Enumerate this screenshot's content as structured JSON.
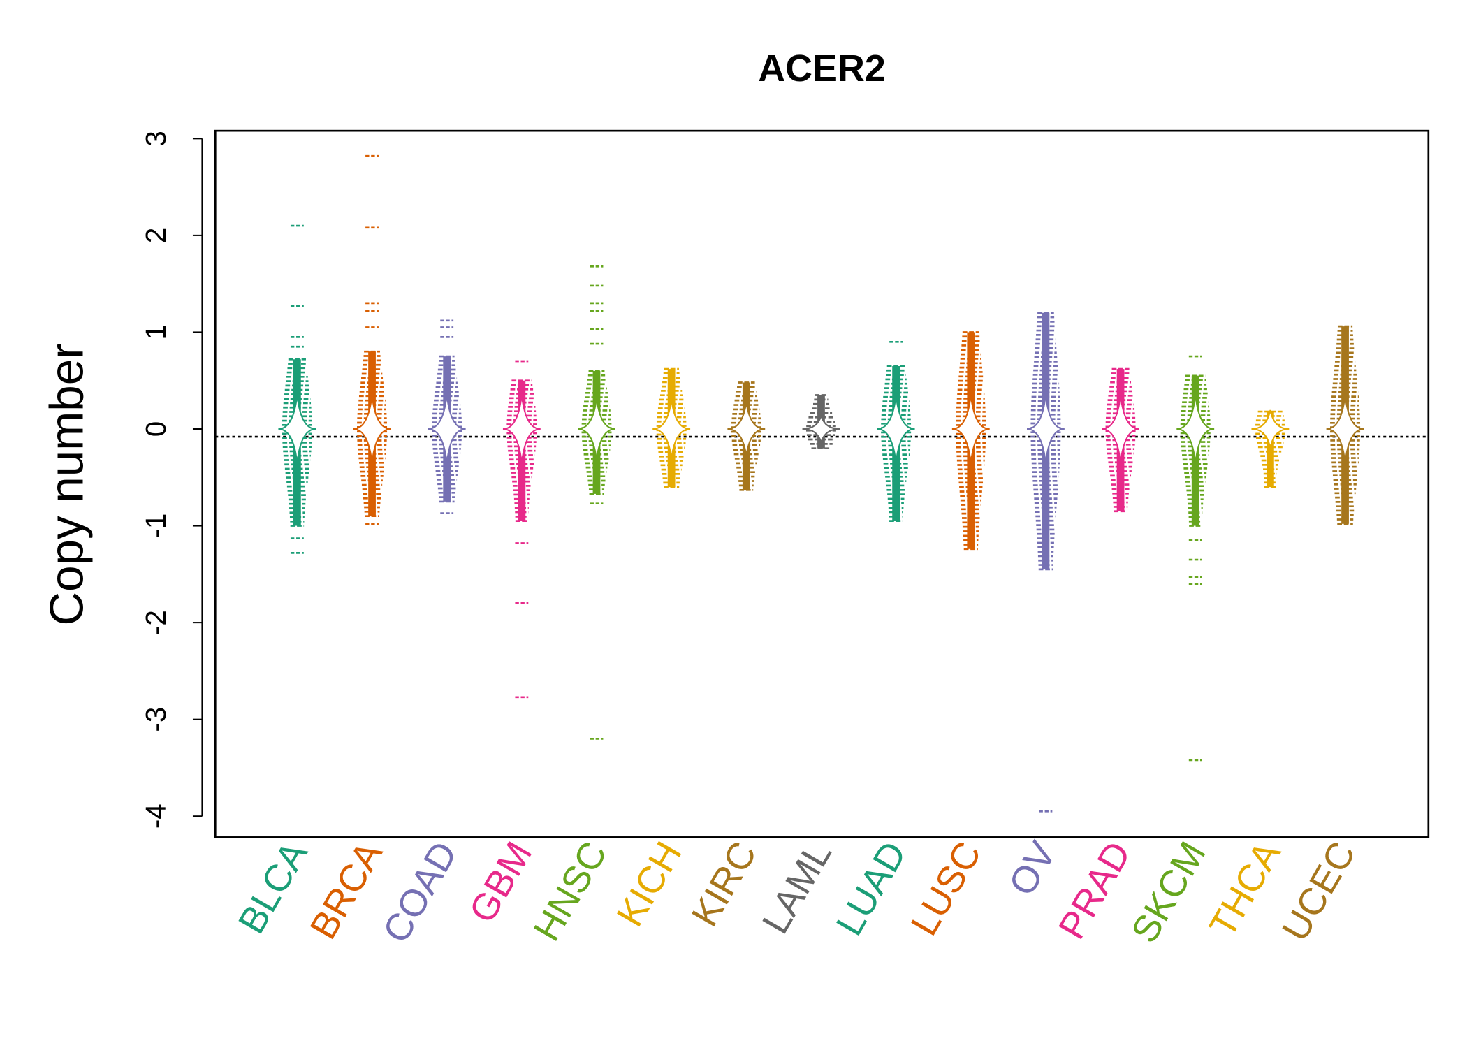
{
  "chart_data": {
    "type": "scatter",
    "subtype": "beeswarm-violin",
    "title": "ACER2",
    "xlabel": "",
    "ylabel": "Copy number",
    "ylim": [
      -4.1,
      3.2
    ],
    "yticks": [
      3,
      2,
      1,
      0,
      -1,
      -2,
      -3,
      -4
    ],
    "ytick_labels": [
      "3",
      "2",
      "1",
      "0",
      "-1",
      "-2",
      "-3",
      "-4"
    ],
    "reference_line": -0.08,
    "grid": false,
    "categories": [
      "BLCA",
      "BRCA",
      "COAD",
      "GBM",
      "HNSC",
      "KICH",
      "KIRC",
      "LAML",
      "LUAD",
      "LUSC",
      "OV",
      "PRAD",
      "SKCM",
      "THCA",
      "UCEC"
    ],
    "colors": [
      "#1B9E77",
      "#D95F02",
      "#7570B3",
      "#E7298A",
      "#66A61E",
      "#E6AB02",
      "#A6761D",
      "#666666",
      "#1B9E77",
      "#D95F02",
      "#7570B3",
      "#E7298A",
      "#66A61E",
      "#E6AB02",
      "#A6761D"
    ],
    "series": [
      {
        "name": "BLCA",
        "body": [
          -1.0,
          0.72
        ],
        "outliers": [
          2.1,
          1.27,
          0.95,
          0.85,
          -1.13,
          -1.28
        ]
      },
      {
        "name": "BRCA",
        "body": [
          -0.9,
          0.8
        ],
        "outliers": [
          2.82,
          2.08,
          1.3,
          1.22,
          1.05,
          -0.98
        ]
      },
      {
        "name": "COAD",
        "body": [
          -0.75,
          0.75
        ],
        "outliers": [
          1.12,
          1.05,
          0.95,
          -0.87
        ]
      },
      {
        "name": "GBM",
        "body": [
          -0.95,
          0.5
        ],
        "outliers": [
          0.7,
          -1.18,
          -1.8,
          -2.77
        ]
      },
      {
        "name": "HNSC",
        "body": [
          -0.67,
          0.6
        ],
        "outliers": [
          1.68,
          1.48,
          1.3,
          1.22,
          1.03,
          0.88,
          -0.77,
          -3.2
        ]
      },
      {
        "name": "KICH",
        "body": [
          -0.6,
          0.62
        ],
        "outliers": []
      },
      {
        "name": "KIRC",
        "body": [
          -0.63,
          0.48
        ],
        "outliers": []
      },
      {
        "name": "LAML",
        "body": [
          -0.2,
          0.35
        ],
        "outliers": []
      },
      {
        "name": "LUAD",
        "body": [
          -0.95,
          0.65
        ],
        "outliers": [
          0.9
        ]
      },
      {
        "name": "LUSC",
        "body": [
          -1.24,
          1.0
        ],
        "outliers": []
      },
      {
        "name": "OV",
        "body": [
          -1.45,
          1.2
        ],
        "outliers": [
          -3.95
        ]
      },
      {
        "name": "PRAD",
        "body": [
          -0.85,
          0.62
        ],
        "outliers": []
      },
      {
        "name": "SKCM",
        "body": [
          -1.0,
          0.55
        ],
        "outliers": [
          0.75,
          -1.15,
          -1.35,
          -1.53,
          -1.6,
          -3.42
        ]
      },
      {
        "name": "THCA",
        "body": [
          -0.6,
          0.18
        ],
        "outliers": []
      },
      {
        "name": "UCEC",
        "body": [
          -0.98,
          1.06
        ],
        "outliers": []
      }
    ]
  }
}
